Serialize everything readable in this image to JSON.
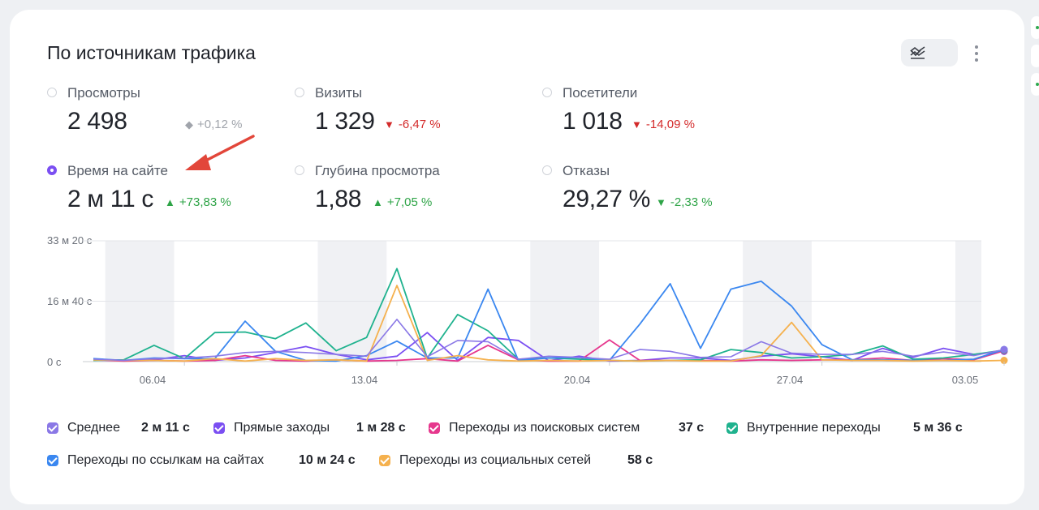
{
  "widget": {
    "title": "По источникам трафика"
  },
  "metrics": [
    {
      "label": "Просмотры",
      "value": "2 498",
      "delta": "+0,12 %",
      "trend": "neutral",
      "selected": false
    },
    {
      "label": "Визиты",
      "value": "1 329",
      "delta": "-6,47 %",
      "trend": "down-bad",
      "selected": false
    },
    {
      "label": "Посетители",
      "value": "1 018",
      "delta": "-14,09 %",
      "trend": "down-bad",
      "selected": false
    },
    {
      "label": "Время на сайте",
      "value": "2 м 11 с",
      "delta": "+73,83 %",
      "trend": "up-good",
      "selected": true
    },
    {
      "label": "Глубина просмотра",
      "value": "1,88",
      "delta": "+7,05 %",
      "trend": "up-good",
      "selected": false
    },
    {
      "label": "Отказы",
      "value": "29,27 %",
      "delta": "-2,33 %",
      "trend": "down-good",
      "selected": false
    }
  ],
  "colors": {
    "accent": "#7b4ff2",
    "red": "#d32a2a",
    "green": "#2ea447",
    "arrow_annotation": "#e2463a",
    "weekend_band": "#f0f1f4"
  },
  "icons": {
    "chart_type": "line-chart-icon",
    "chevron": "chevron-down-icon",
    "menu": "more-vertical-icon",
    "arrow": "red-arrow-annotation"
  },
  "legend": [
    {
      "name": "Среднее",
      "value": "2 м 11 с",
      "color": "#8a78e6"
    },
    {
      "name": "Прямые заходы",
      "value": "1 м 28 с",
      "color": "#7b4ff2"
    },
    {
      "name": "Переходы из поисковых систем",
      "value": "37 с",
      "color": "#e6378d"
    },
    {
      "name": "Внутренние переходы",
      "value": "5 м 36 с",
      "color": "#1fb28e"
    },
    {
      "name": "Переходы по ссылкам на сайтах",
      "value": "10 м 24 с",
      "color": "#3a87f0"
    },
    {
      "name": "Переходы из социальных сетей",
      "value": "58 с",
      "color": "#f5b14e"
    }
  ],
  "chart_data": {
    "type": "line",
    "x": [
      "03.04",
      "04.04",
      "05.04",
      "06.04",
      "07.04",
      "08.04",
      "09.04",
      "10.04",
      "11.04",
      "12.04",
      "13.04",
      "14.04",
      "15.04",
      "16.04",
      "17.04",
      "18.04",
      "19.04",
      "20.04",
      "21.04",
      "22.04",
      "23.04",
      "24.04",
      "25.04",
      "26.04",
      "27.04",
      "28.04",
      "29.04",
      "30.04",
      "01.05",
      "02.05",
      "03.05"
    ],
    "x_tick_labels": [
      "06.04",
      "13.04",
      "20.04",
      "27.04",
      "03.05"
    ],
    "y_tick_labels": [
      "33 м 20 с",
      "16 м 40 с",
      "0 с"
    ],
    "ylim": [
      0,
      2000
    ],
    "y_unit": "seconds",
    "grid": true,
    "weekend_bands": [
      [
        "04.04",
        "05.04"
      ],
      [
        "11.04",
        "12.04"
      ],
      [
        "18.04",
        "19.04"
      ],
      [
        "25.04",
        "26.04"
      ],
      [
        "02.05",
        "03.05"
      ]
    ],
    "series": [
      {
        "name": "Прямые заходы",
        "values": [
          25,
          20,
          30,
          100,
          20,
          60,
          150,
          250,
          120,
          30,
          90,
          480,
          20,
          400,
          350,
          15,
          90,
          10,
          20,
          60,
          60,
          20,
          90,
          130,
          80,
          20,
          220,
          70,
          220,
          120,
          170
        ]
      },
      {
        "name": "Переходы из поисковых систем",
        "values": [
          30,
          10,
          20,
          10,
          20,
          100,
          20,
          10,
          30,
          10,
          20,
          50,
          10,
          270,
          30,
          10,
          10,
          360,
          20,
          20,
          20,
          10,
          30,
          20,
          30,
          30,
          60,
          20,
          50,
          30,
          180
        ]
      },
      {
        "name": "Внутренние переходы",
        "values": [
          20,
          30,
          270,
          50,
          480,
          490,
          380,
          640,
          180,
          400,
          1540,
          60,
          780,
          510,
          40,
          60,
          40,
          20,
          10,
          20,
          30,
          200,
          150,
          60,
          80,
          120,
          260,
          40,
          60,
          120,
          190
        ]
      },
      {
        "name": "Переходы по ссылкам на сайтах",
        "values": [
          50,
          20,
          60,
          50,
          50,
          670,
          170,
          20,
          10,
          100,
          340,
          60,
          60,
          1200,
          20,
          60,
          70,
          20,
          620,
          1290,
          220,
          1200,
          1330,
          920,
          280,
          30,
          30,
          20,
          20,
          40,
          200
        ]
      },
      {
        "name": "Переходы из социальных сетей",
        "values": [
          30,
          20,
          20,
          10,
          50,
          10,
          50,
          20,
          30,
          10,
          1260,
          20,
          100,
          30,
          10,
          20,
          10,
          20,
          10,
          20,
          10,
          10,
          100,
          650,
          30,
          20,
          20,
          10,
          20,
          10,
          20
        ]
      },
      {
        "name": "Среднее",
        "values": [
          40,
          20,
          50,
          60,
          90,
          150,
          170,
          150,
          120,
          90,
          700,
          80,
          350,
          330,
          40,
          90,
          70,
          40,
          200,
          170,
          70,
          80,
          330,
          140,
          120,
          120,
          170,
          90,
          160,
          100,
          200
        ]
      }
    ]
  }
}
